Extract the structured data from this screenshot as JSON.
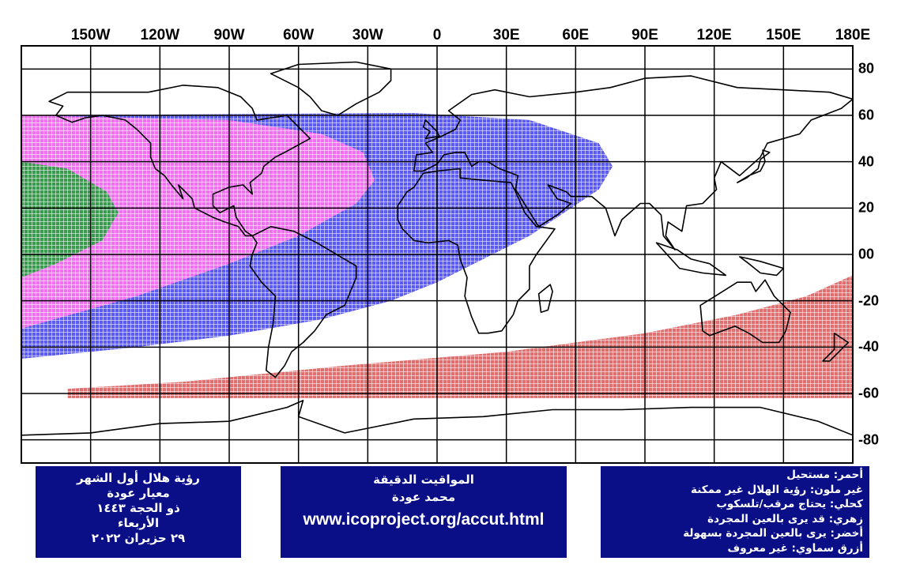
{
  "map": {
    "lon_labels": [
      "150W",
      "120W",
      "90W",
      "60W",
      "30W",
      "0",
      "30E",
      "60E",
      "90E",
      "120E",
      "150E",
      "180E"
    ],
    "lat_labels": [
      "80",
      "60",
      "40",
      "20",
      "00",
      "-20",
      "-40",
      "-60",
      "-80"
    ],
    "colors": {
      "red": "#e07070",
      "none": "#ffffff",
      "blue": "#5c5cf0",
      "magenta": "#f070f0",
      "green": "#3c9a50",
      "land_outline": "#000000",
      "grid": "#000000"
    },
    "zones": [
      {
        "name": "visible-easily-naked-eye",
        "color_key": "green",
        "lon_range": [
          "180W",
          "130W"
        ],
        "lat_range": [
          "-10",
          "40"
        ]
      },
      {
        "name": "visible-naked-eye-maybe",
        "color_key": "magenta",
        "lon_range": [
          "180W",
          "25W"
        ],
        "lat_range": [
          "-30",
          "60"
        ]
      },
      {
        "name": "needs-optical-aid",
        "color_key": "blue",
        "lon_range": [
          "180W",
          "75E"
        ],
        "lat_range": [
          "-45",
          "60"
        ]
      },
      {
        "name": "impossible-southern-band",
        "color_key": "red",
        "lon_range": [
          "160W",
          "180E"
        ],
        "lat_range": [
          "-60",
          "-10"
        ]
      }
    ]
  },
  "box_left": {
    "line1": "رؤية هلال أول الشهر",
    "line2": "معيار عودة",
    "line3": "ذو الحجة ١٤٤٣",
    "line4": "الأربعاء",
    "line5": "٢٩ حزيران ٢٠٢٢"
  },
  "box_mid": {
    "line1": "المواقيت الدقيقة",
    "line2": "محمد عودة",
    "url": "www.icoproject.org/accut.html"
  },
  "box_right": {
    "line1": "أحمر: مستحيل",
    "line2": "غير ملون: رؤية الهلال غير ممكنة",
    "line3": "كحلي: يحتاج مرقب/تلسكوب",
    "line4": "زهري: قد يرى بالعين المجردة",
    "line5": "أخضر: يرى بالعين المجردة بسهولة",
    "line6": "أزرق سماوي: غير معروف"
  }
}
